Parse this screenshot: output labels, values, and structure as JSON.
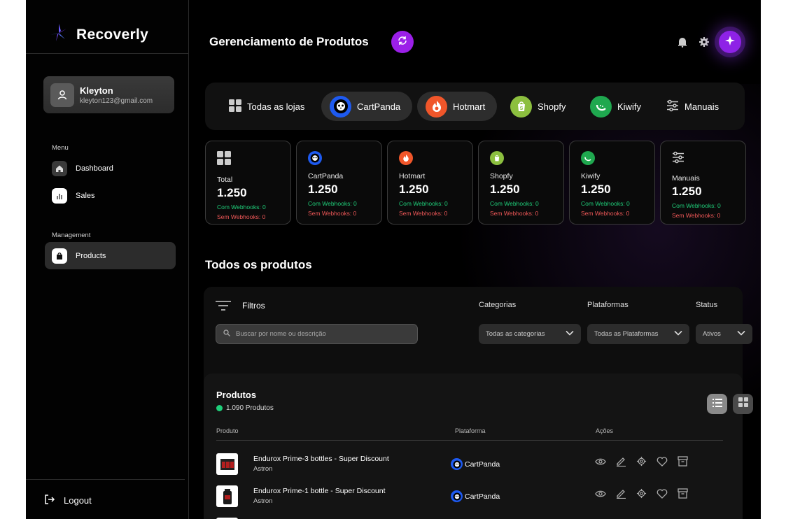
{
  "app": {
    "name": "Recoverly"
  },
  "user": {
    "name": "Kleyton",
    "email": "kleyton123@gmail.com"
  },
  "sidebar": {
    "menu_label": "Menu",
    "menu_items": [
      {
        "label": "Dashboard",
        "icon": "home-icon"
      },
      {
        "label": "Sales",
        "icon": "chart-icon"
      }
    ],
    "management_label": "Management",
    "management_items": [
      {
        "label": "Products",
        "icon": "bag-icon",
        "active": true
      }
    ],
    "logout_label": "Logout"
  },
  "header": {
    "title": "Gerenciamento de Produtos"
  },
  "store_tabs": [
    {
      "label": "Todas as lojas",
      "icon": "grid-icon"
    },
    {
      "label": "CartPanda",
      "icon": "cartpanda-logo",
      "color": "#1e5af0"
    },
    {
      "label": "Hotmart",
      "icon": "hotmart-logo",
      "color": "#f0562a"
    },
    {
      "label": "Shopfy",
      "icon": "shopify-logo",
      "color": "#8cbf3f"
    },
    {
      "label": "Kiwify",
      "icon": "kiwify-logo",
      "color": "#1fa84f"
    },
    {
      "label": "Manuais",
      "icon": "sliders-icon"
    }
  ],
  "stats": [
    {
      "name": "Total",
      "value": "1.250",
      "with": "Com Webhooks: 0",
      "without": "Sem Webhooks: 0"
    },
    {
      "name": "CartPanda",
      "value": "1.250",
      "with": "Com Webhooks: 0",
      "without": "Sem Webhooks: 0"
    },
    {
      "name": "Hotmart",
      "value": "1.250",
      "with": "Com Webhooks: 0",
      "without": "Sem Webhooks: 0"
    },
    {
      "name": "Shopfy",
      "value": "1.250",
      "with": "Com Webhooks: 0",
      "without": "Sem Webhooks: 0"
    },
    {
      "name": "Kiwify",
      "value": "1.250",
      "with": "Com Webhooks: 0",
      "without": "Sem Webhooks: 0"
    },
    {
      "name": "Manuais",
      "value": "1.250",
      "with": "Com Webhooks: 0",
      "without": "Sem Webhooks: 0"
    }
  ],
  "section_title": "Todos os produtos",
  "filters": {
    "label": "Filtros",
    "search_placeholder": "Buscar por nome ou descrição",
    "categories": {
      "label": "Categorias",
      "value": "Todas as categorias"
    },
    "platforms": {
      "label": "Plataformas",
      "value": "Todas as Plataformas"
    },
    "status": {
      "label": "Status",
      "value": "Ativos"
    }
  },
  "products": {
    "title": "Produtos",
    "count": "1.090 Produtos",
    "columns": {
      "product": "Produto",
      "platform": "Plataforma",
      "actions": "Ações"
    },
    "rows": [
      {
        "name": "Endurox Prime-3 bottles - Super Discount",
        "brand": "Astron",
        "platform": "CartPanda"
      },
      {
        "name": "Endurox Prime-1 bottle - Super Discount",
        "brand": "Astron",
        "platform": "CartPanda"
      }
    ]
  },
  "colors": {
    "accent": "#9b1fe8",
    "positive": "#1fcf7a",
    "negative": "#f05858"
  }
}
